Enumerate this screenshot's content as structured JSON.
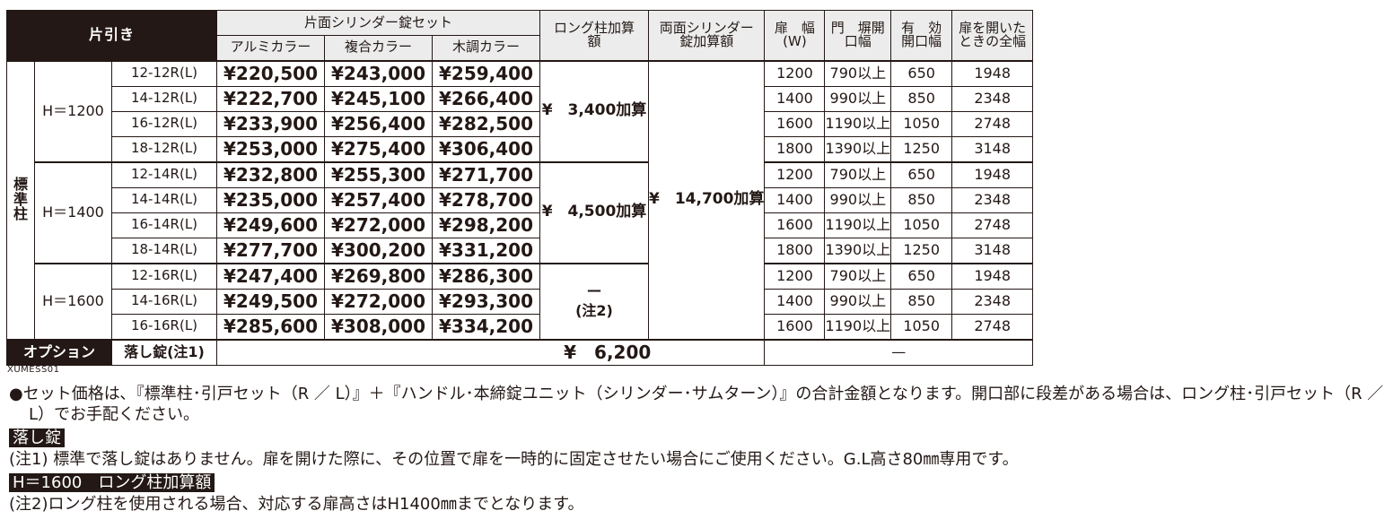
{
  "header": {
    "title": "片引き",
    "single_cyl": "片面シリンダー錠セット",
    "alu": "アルミカラー",
    "composite": "複合カラー",
    "wood": "木調カラー",
    "long_post": "ロング柱加算額",
    "double_cyl": "両面シリンダー錠加算額",
    "door_width": "扉　幅(W)",
    "gate_opening": "門　塀開口幅",
    "eff_opening": "有　効開口幅",
    "full_width": "扉を開いたときの全幅"
  },
  "standard_post": "標準柱",
  "groups": [
    {
      "height": "H＝1200",
      "long_post_addon": "¥　3,400加算",
      "rows": [
        {
          "code": "12-12R(L)",
          "alu": "¥220,500",
          "composite": "¥243,000",
          "wood": "¥259,400",
          "w": "1200",
          "gate": "790以上",
          "eff": "650",
          "full": "1948"
        },
        {
          "code": "14-12R(L)",
          "alu": "¥222,700",
          "composite": "¥245,100",
          "wood": "¥266,400",
          "w": "1400",
          "gate": "990以上",
          "eff": "850",
          "full": "2348"
        },
        {
          "code": "16-12R(L)",
          "alu": "¥233,900",
          "composite": "¥256,400",
          "wood": "¥282,500",
          "w": "1600",
          "gate": "1190以上",
          "eff": "1050",
          "full": "2748"
        },
        {
          "code": "18-12R(L)",
          "alu": "¥253,000",
          "composite": "¥275,400",
          "wood": "¥306,400",
          "w": "1800",
          "gate": "1390以上",
          "eff": "1250",
          "full": "3148"
        }
      ]
    },
    {
      "height": "H＝1400",
      "long_post_addon": "¥　4,500加算",
      "rows": [
        {
          "code": "12-14R(L)",
          "alu": "¥232,800",
          "composite": "¥255,300",
          "wood": "¥271,700",
          "w": "1200",
          "gate": "790以上",
          "eff": "650",
          "full": "1948"
        },
        {
          "code": "14-14R(L)",
          "alu": "¥235,000",
          "composite": "¥257,400",
          "wood": "¥278,700",
          "w": "1400",
          "gate": "990以上",
          "eff": "850",
          "full": "2348"
        },
        {
          "code": "16-14R(L)",
          "alu": "¥249,600",
          "composite": "¥272,000",
          "wood": "¥298,200",
          "w": "1600",
          "gate": "1190以上",
          "eff": "1050",
          "full": "2748"
        },
        {
          "code": "18-14R(L)",
          "alu": "¥277,700",
          "composite": "¥300,200",
          "wood": "¥331,200",
          "w": "1800",
          "gate": "1390以上",
          "eff": "1250",
          "full": "3148"
        }
      ]
    },
    {
      "height": "H＝1600",
      "long_post_addon_dash": "—",
      "long_post_addon_note": "(注2)",
      "rows": [
        {
          "code": "12-16R(L)",
          "alu": "¥247,400",
          "composite": "¥269,800",
          "wood": "¥286,300",
          "w": "1200",
          "gate": "790以上",
          "eff": "650",
          "full": "1948"
        },
        {
          "code": "14-16R(L)",
          "alu": "¥249,500",
          "composite": "¥272,000",
          "wood": "¥293,300",
          "w": "1400",
          "gate": "990以上",
          "eff": "850",
          "full": "2348"
        },
        {
          "code": "16-16R(L)",
          "alu": "¥285,600",
          "composite": "¥308,000",
          "wood": "¥334,200",
          "w": "1600",
          "gate": "1190以上",
          "eff": "1050",
          "full": "2748"
        }
      ]
    }
  ],
  "double_cyl_addon": "¥　14,700加算",
  "option": {
    "label": "オプション",
    "name": "落し錠(注1)",
    "price": "¥　6,200",
    "spec_dash": "—"
  },
  "code_label": "XUMESS01",
  "notes": {
    "bullet": "●セット価格は､『標準柱･引戸セット（R ／ L）』＋『ハンドル･本締錠ユニット（シリンダー･サムターン）』の合計金額となります。開口部に段差がある場合は、ロング柱･引戸セット（R ／ L）でお手配ください。",
    "tag1": "落し錠",
    "note1": "(注1) 標準で落し錠はありません。扉を開けた際に、その位置で扉を一時的に固定させたい場合にご使用ください。G.L高さ80㎜専用です。",
    "tag2": "H＝1600　ロング柱加算額",
    "note2": "(注2)ロング柱を使用される場合、対応する扉高さはH1400㎜までとなります。"
  }
}
